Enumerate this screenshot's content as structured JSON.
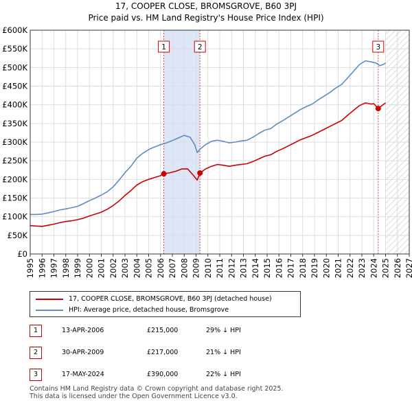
{
  "title": "17, COOPER CLOSE, BROMSGROVE, B60 3PJ",
  "subtitle": "Price paid vs. HM Land Registry's House Price Index (HPI)",
  "chart_data": {
    "type": "line",
    "x_range": [
      1995,
      2027
    ],
    "ylim": [
      0,
      600000
    ],
    "y_ticks": [
      {
        "value": 0,
        "label": "£0"
      },
      {
        "value": 50000,
        "label": "£50K"
      },
      {
        "value": 100000,
        "label": "£100K"
      },
      {
        "value": 150000,
        "label": "£150K"
      },
      {
        "value": 200000,
        "label": "£200K"
      },
      {
        "value": 250000,
        "label": "£250K"
      },
      {
        "value": 300000,
        "label": "£300K"
      },
      {
        "value": 350000,
        "label": "£350K"
      },
      {
        "value": 400000,
        "label": "£400K"
      },
      {
        "value": 450000,
        "label": "£450K"
      },
      {
        "value": 500000,
        "label": "£500K"
      },
      {
        "value": 550000,
        "label": "£550K"
      },
      {
        "value": 600000,
        "label": "£600K"
      }
    ],
    "x_ticks": [
      "1995",
      "1996",
      "1997",
      "1998",
      "1999",
      "2000",
      "2001",
      "2002",
      "2003",
      "2004",
      "2005",
      "2006",
      "2007",
      "2008",
      "2009",
      "2010",
      "2011",
      "2012",
      "2013",
      "2014",
      "2015",
      "2016",
      "2017",
      "2018",
      "2019",
      "2020",
      "2021",
      "2022",
      "2023",
      "2024",
      "2025",
      "2026",
      "2027"
    ],
    "grid": true,
    "shaded_span": [
      2006.28,
      2009.33
    ],
    "forecast_from": 2025.0,
    "series": [
      {
        "name": "17, COOPER CLOSE, BROMSGROVE, B60 3PJ (detached house)",
        "color": "#cc0000",
        "points": [
          [
            1995.0,
            76000
          ],
          [
            1995.5,
            75000
          ],
          [
            1996.0,
            74000
          ],
          [
            1996.5,
            77000
          ],
          [
            1997.0,
            80000
          ],
          [
            1997.5,
            84000
          ],
          [
            1998.0,
            87000
          ],
          [
            1998.5,
            89000
          ],
          [
            1999.0,
            92000
          ],
          [
            1999.5,
            96000
          ],
          [
            2000.0,
            102000
          ],
          [
            2000.5,
            107000
          ],
          [
            2001.0,
            112000
          ],
          [
            2001.5,
            120000
          ],
          [
            2002.0,
            130000
          ],
          [
            2002.5,
            142000
          ],
          [
            2003.0,
            157000
          ],
          [
            2003.5,
            170000
          ],
          [
            2004.0,
            185000
          ],
          [
            2004.5,
            194000
          ],
          [
            2005.0,
            200000
          ],
          [
            2005.5,
            205000
          ],
          [
            2006.0,
            210000
          ],
          [
            2006.28,
            215000
          ],
          [
            2006.8,
            218000
          ],
          [
            2007.3,
            222000
          ],
          [
            2007.8,
            228000
          ],
          [
            2008.3,
            228000
          ],
          [
            2008.8,
            210000
          ],
          [
            2009.1,
            198000
          ],
          [
            2009.33,
            217000
          ],
          [
            2009.8,
            228000
          ],
          [
            2010.3,
            235000
          ],
          [
            2010.8,
            240000
          ],
          [
            2011.3,
            238000
          ],
          [
            2011.8,
            235000
          ],
          [
            2012.3,
            238000
          ],
          [
            2012.8,
            240000
          ],
          [
            2013.3,
            242000
          ],
          [
            2013.8,
            248000
          ],
          [
            2014.3,
            255000
          ],
          [
            2014.8,
            262000
          ],
          [
            2015.3,
            266000
          ],
          [
            2015.8,
            275000
          ],
          [
            2016.3,
            282000
          ],
          [
            2016.8,
            290000
          ],
          [
            2017.3,
            298000
          ],
          [
            2017.8,
            306000
          ],
          [
            2018.3,
            312000
          ],
          [
            2018.8,
            318000
          ],
          [
            2019.3,
            326000
          ],
          [
            2019.8,
            334000
          ],
          [
            2020.3,
            342000
          ],
          [
            2020.8,
            350000
          ],
          [
            2021.3,
            358000
          ],
          [
            2021.8,
            372000
          ],
          [
            2022.3,
            385000
          ],
          [
            2022.8,
            398000
          ],
          [
            2023.3,
            405000
          ],
          [
            2023.8,
            402000
          ],
          [
            2024.0,
            403000
          ],
          [
            2024.38,
            390000
          ],
          [
            2024.7,
            398000
          ],
          [
            2025.0,
            405000
          ]
        ]
      },
      {
        "name": "HPI: Average price, detached house, Bromsgrove",
        "color": "#5b8cc4",
        "points": [
          [
            1995.0,
            106000
          ],
          [
            1995.5,
            106000
          ],
          [
            1996.0,
            107000
          ],
          [
            1996.5,
            110000
          ],
          [
            1997.0,
            114000
          ],
          [
            1997.5,
            118000
          ],
          [
            1998.0,
            121000
          ],
          [
            1998.5,
            124000
          ],
          [
            1999.0,
            128000
          ],
          [
            1999.5,
            135000
          ],
          [
            2000.0,
            143000
          ],
          [
            2000.5,
            150000
          ],
          [
            2001.0,
            158000
          ],
          [
            2001.5,
            167000
          ],
          [
            2002.0,
            180000
          ],
          [
            2002.5,
            198000
          ],
          [
            2003.0,
            218000
          ],
          [
            2003.5,
            235000
          ],
          [
            2004.0,
            257000
          ],
          [
            2004.5,
            270000
          ],
          [
            2005.0,
            280000
          ],
          [
            2005.5,
            287000
          ],
          [
            2006.0,
            293000
          ],
          [
            2006.5,
            298000
          ],
          [
            2007.0,
            304000
          ],
          [
            2007.5,
            311000
          ],
          [
            2008.0,
            318000
          ],
          [
            2008.5,
            313000
          ],
          [
            2008.9,
            292000
          ],
          [
            2009.1,
            272000
          ],
          [
            2009.4,
            283000
          ],
          [
            2009.8,
            293000
          ],
          [
            2010.3,
            302000
          ],
          [
            2010.8,
            305000
          ],
          [
            2011.3,
            302000
          ],
          [
            2011.8,
            298000
          ],
          [
            2012.3,
            300000
          ],
          [
            2012.8,
            303000
          ],
          [
            2013.3,
            305000
          ],
          [
            2013.8,
            313000
          ],
          [
            2014.3,
            323000
          ],
          [
            2014.8,
            332000
          ],
          [
            2015.3,
            336000
          ],
          [
            2015.8,
            348000
          ],
          [
            2016.3,
            357000
          ],
          [
            2016.8,
            367000
          ],
          [
            2017.3,
            377000
          ],
          [
            2017.8,
            387000
          ],
          [
            2018.3,
            395000
          ],
          [
            2018.8,
            402000
          ],
          [
            2019.3,
            413000
          ],
          [
            2019.8,
            423000
          ],
          [
            2020.3,
            433000
          ],
          [
            2020.8,
            445000
          ],
          [
            2021.3,
            455000
          ],
          [
            2021.8,
            472000
          ],
          [
            2022.3,
            490000
          ],
          [
            2022.8,
            508000
          ],
          [
            2023.3,
            518000
          ],
          [
            2023.8,
            515000
          ],
          [
            2024.2,
            512000
          ],
          [
            2024.5,
            505000
          ],
          [
            2024.8,
            508000
          ],
          [
            2025.0,
            512000
          ]
        ]
      }
    ],
    "sales": [
      {
        "label": "1",
        "year": 2006.28,
        "price": 215000,
        "date": "13-APR-2006",
        "price_text": "£215,000",
        "hpi_text": "29% ↓ HPI"
      },
      {
        "label": "2",
        "year": 2009.33,
        "price": 217000,
        "date": "30-APR-2009",
        "price_text": "£217,000",
        "hpi_text": "21% ↓ HPI"
      },
      {
        "label": "3",
        "year": 2024.38,
        "price": 390000,
        "date": "17-MAY-2024",
        "price_text": "£390,000",
        "hpi_text": "22% ↓ HPI"
      }
    ]
  },
  "legend": {
    "property_label": "17, COOPER CLOSE, BROMSGROVE, B60 3PJ (detached house)",
    "hpi_label": "HPI: Average price, detached house, Bromsgrove"
  },
  "colors": {
    "property": "#cc0000",
    "hpi": "#5b8cc4",
    "shade": "#dde6f7",
    "grid": "#dddddd"
  },
  "footer": {
    "line1": "Contains HM Land Registry data © Crown copyright and database right 2025.",
    "line2": "This data is licensed under the Open Government Licence v3.0."
  }
}
